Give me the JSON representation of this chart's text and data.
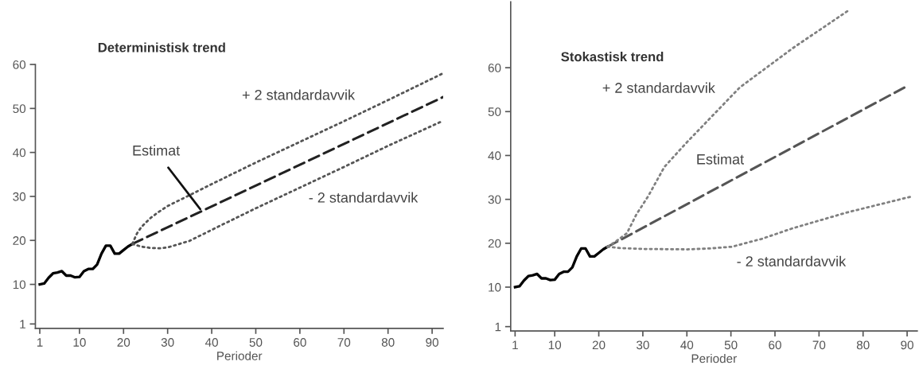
{
  "chart_data": [
    {
      "type": "line",
      "title": "Deterministisk trend",
      "xlabel": "Perioder",
      "xlim": [
        0,
        92.5
      ],
      "ylim": [
        0,
        60
      ],
      "xticks": [
        1,
        10,
        20,
        30,
        40,
        50,
        60,
        70,
        80,
        90
      ],
      "yticks": [
        1,
        10,
        20,
        30,
        40,
        50,
        60
      ],
      "grid": false,
      "legend": false,
      "series": [
        {
          "color": "#000000",
          "line_style": "solid",
          "x": [
            1,
            2,
            3,
            4,
            5,
            6,
            7,
            8,
            9,
            10,
            11,
            12,
            13,
            14,
            15,
            16,
            17,
            18,
            19,
            20,
            21,
            22
          ],
          "values": [
            10,
            10.2,
            11.5,
            12.5,
            12.7,
            13,
            12,
            12,
            11.6,
            11.7,
            13,
            13.5,
            13.5,
            14.5,
            17,
            18.8,
            18.8,
            17,
            17,
            17.8,
            18.6,
            19.2
          ]
        },
        {
          "color": "#222222",
          "line_style": "dashed",
          "x": [
            22,
            92.5
          ],
          "values": [
            19.2,
            52.6
          ]
        },
        {
          "color": "#555555",
          "line_style": "dotted",
          "x": [
            22,
            23,
            24,
            26,
            28,
            30,
            35,
            40,
            50,
            60,
            70,
            80,
            92.5
          ],
          "values": [
            19.2,
            21.5,
            23,
            25,
            26.5,
            27.8,
            30.3,
            32.8,
            37.7,
            42.4,
            47.1,
            51.9,
            58
          ]
        },
        {
          "color": "#555555",
          "line_style": "dotted",
          "x": [
            22,
            24,
            26,
            28,
            30,
            35,
            40,
            50,
            60,
            70,
            80,
            92.5
          ],
          "values": [
            19.2,
            18.6,
            18.3,
            18.2,
            18.4,
            19.9,
            22.4,
            27.3,
            32,
            36.7,
            41.5,
            47.2
          ]
        }
      ],
      "annotations": [
        "+ 2 standardavvik",
        {
          "text": "Estimat",
          "x": 37.4,
          "y": 27.1
        },
        "- 2 standardavvik"
      ]
    },
    {
      "type": "line",
      "title": "Stokastisk trend",
      "xlabel": "Perioder",
      "xlim": [
        0,
        92.3
      ],
      "ylim": [
        0,
        75
      ],
      "xticks": [
        1,
        10,
        20,
        30,
        40,
        50,
        60,
        70,
        80,
        90
      ],
      "yticks": [
        1,
        10,
        20,
        30,
        40,
        50,
        60
      ],
      "grid": false,
      "legend": false,
      "series": [
        {
          "color": "#000000",
          "line_style": "solid",
          "x": [
            1,
            2,
            3,
            4,
            5,
            6,
            7,
            8,
            9,
            10,
            11,
            12,
            13,
            14,
            15,
            16,
            17,
            18,
            19,
            20,
            21,
            22
          ],
          "values": [
            10,
            10.2,
            11.5,
            12.5,
            12.7,
            13,
            12,
            12,
            11.6,
            11.7,
            13,
            13.5,
            13.5,
            14.5,
            17,
            18.8,
            18.8,
            17,
            17,
            17.8,
            18.6,
            19.2
          ]
        },
        {
          "color": "#555555",
          "line_style": "dashed",
          "x": [
            22,
            89.4
          ],
          "values": [
            19.2,
            55.5
          ]
        },
        {
          "color": "#808080",
          "line_style": "dotted",
          "x": [
            22,
            24,
            26.4,
            28.5,
            31.2,
            34.9,
            39.8,
            52,
            64.1,
            76.6
          ],
          "values": [
            19.2,
            20.5,
            22.3,
            26.5,
            30.7,
            37.4,
            42.8,
            55.5,
            64.5,
            73
          ]
        },
        {
          "color": "#808080",
          "line_style": "dotted",
          "x": [
            22,
            25,
            30,
            40,
            45,
            50.2,
            57,
            64,
            76.3,
            91.2
          ],
          "values": [
            19.2,
            18.9,
            18.7,
            18.6,
            18.8,
            19.2,
            21,
            23.4,
            27,
            30.7
          ]
        }
      ],
      "annotations": [
        "+ 2 standardavvik",
        "Estimat",
        "- 2 standardavvik"
      ]
    }
  ]
}
